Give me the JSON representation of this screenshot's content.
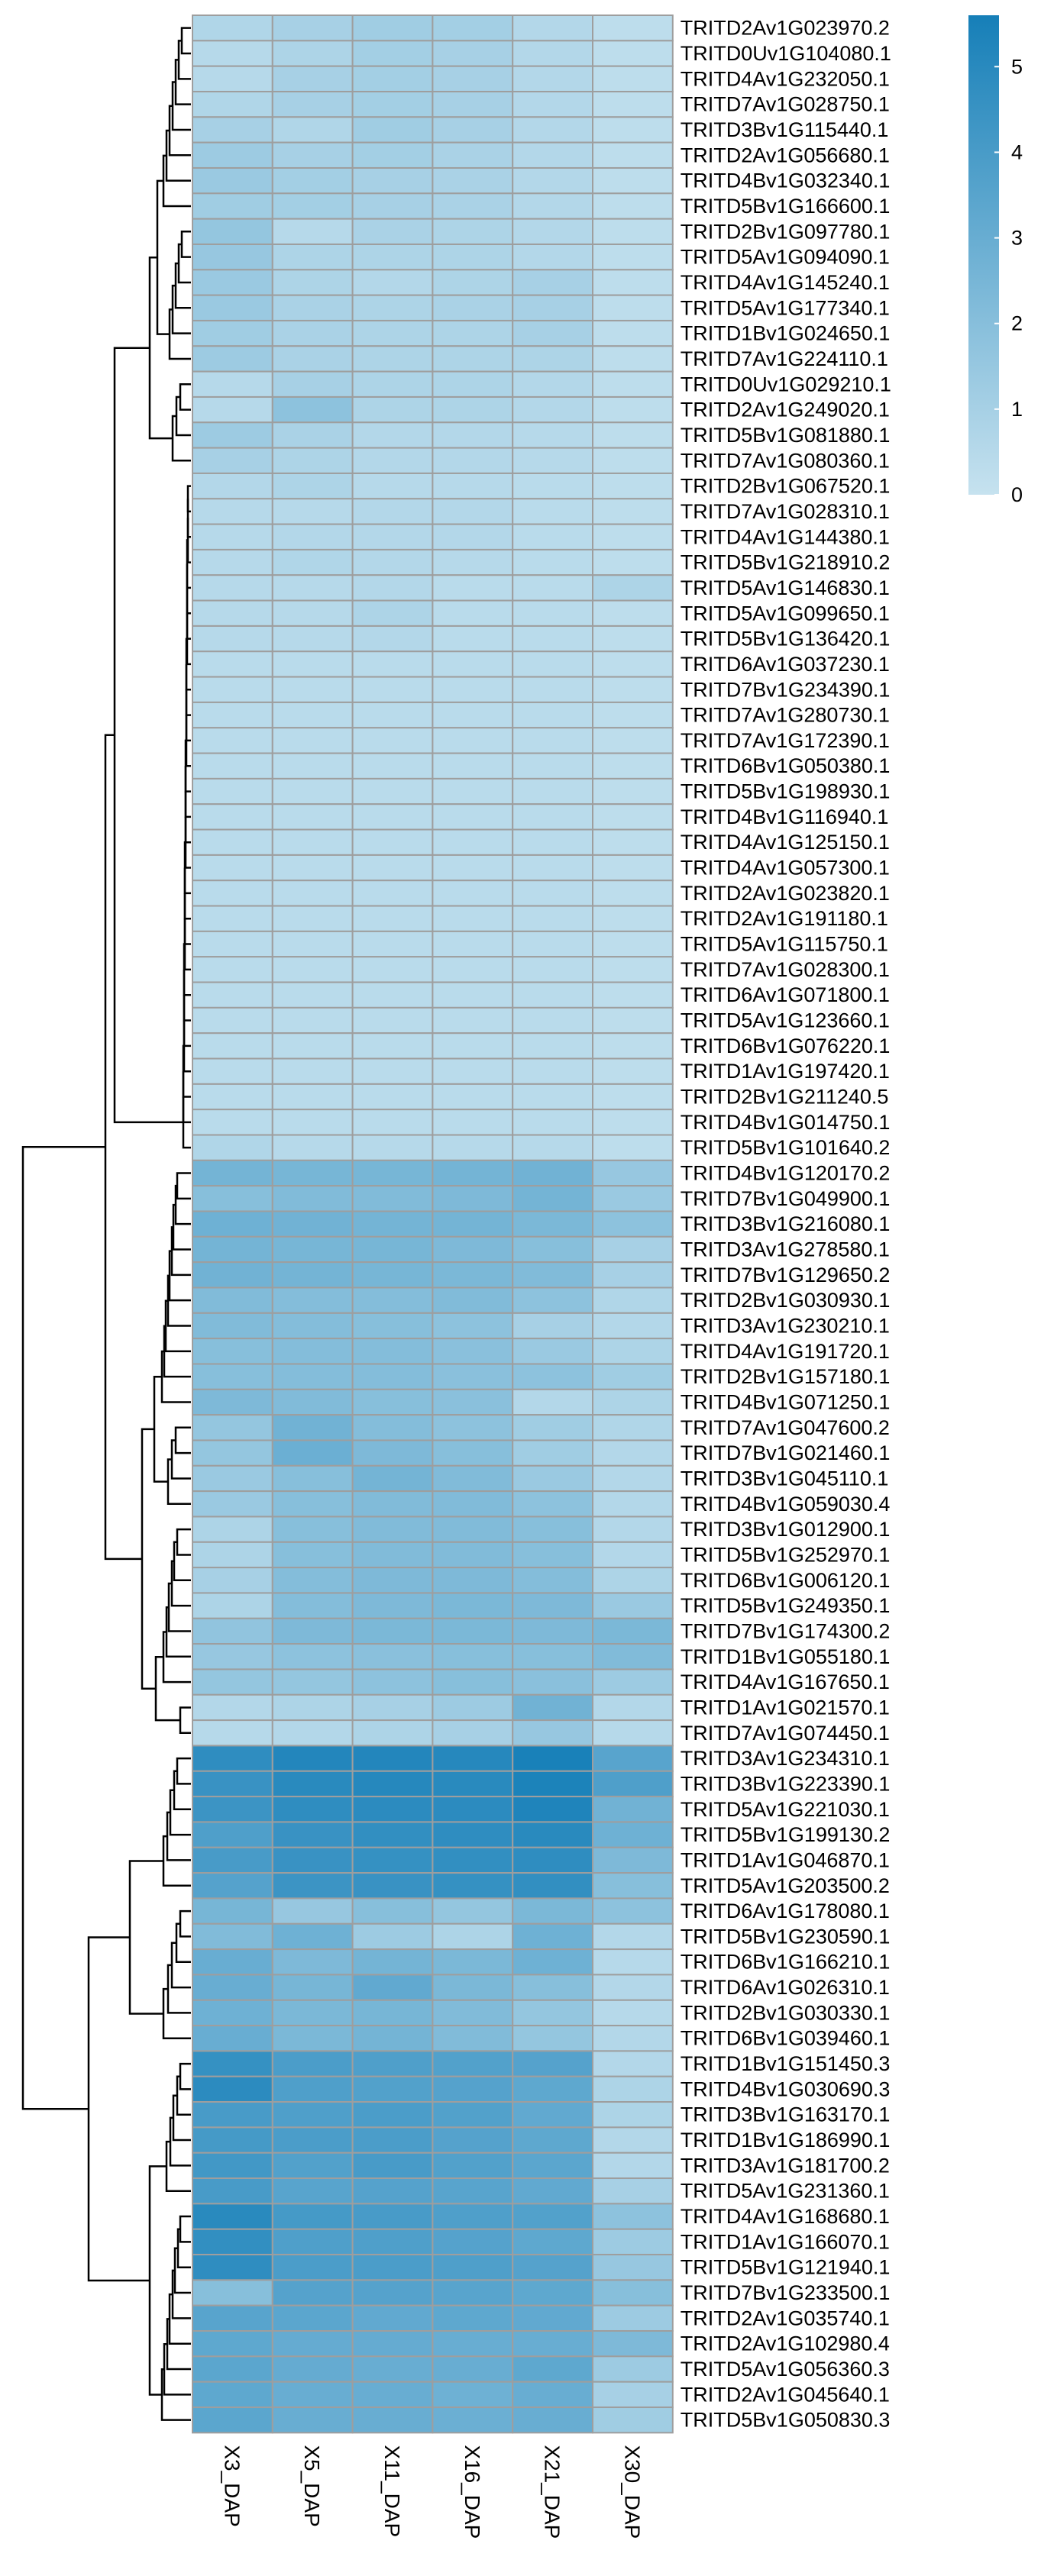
{
  "chart_data": {
    "type": "heatmap",
    "columns": [
      "X3_DAP",
      "X5_DAP",
      "X11_DAP",
      "X16_DAP",
      "X21_DAP",
      "X30_DAP"
    ],
    "rows": [
      "TRITD2Av1G023970.2",
      "TRITD0Uv1G104080.1",
      "TRITD4Av1G232050.1",
      "TRITD7Av1G028750.1",
      "TRITD3Bv1G115440.1",
      "TRITD2Av1G056680.1",
      "TRITD4Bv1G032340.1",
      "TRITD5Bv1G166600.1",
      "TRITD2Bv1G097780.1",
      "TRITD5Av1G094090.1",
      "TRITD4Av1G145240.1",
      "TRITD5Av1G177340.1",
      "TRITD1Bv1G024650.1",
      "TRITD7Av1G224110.1",
      "TRITD0Uv1G029210.1",
      "TRITD2Av1G249020.1",
      "TRITD5Bv1G081880.1",
      "TRITD7Av1G080360.1",
      "TRITD2Bv1G067520.1",
      "TRITD7Av1G028310.1",
      "TRITD4Av1G144380.1",
      "TRITD5Bv1G218910.2",
      "TRITD5Av1G146830.1",
      "TRITD5Av1G099650.1",
      "TRITD5Bv1G136420.1",
      "TRITD6Av1G037230.1",
      "TRITD7Bv1G234390.1",
      "TRITD7Av1G280730.1",
      "TRITD7Av1G172390.1",
      "TRITD6Bv1G050380.1",
      "TRITD5Bv1G198930.1",
      "TRITD4Bv1G116940.1",
      "TRITD4Av1G125150.1",
      "TRITD4Av1G057300.1",
      "TRITD2Av1G023820.1",
      "TRITD2Av1G191180.1",
      "TRITD5Av1G115750.1",
      "TRITD7Av1G028300.1",
      "TRITD6Av1G071800.1",
      "TRITD5Av1G123660.1",
      "TRITD6Bv1G076220.1",
      "TRITD1Av1G197420.1",
      "TRITD2Bv1G211240.5",
      "TRITD4Bv1G014750.1",
      "TRITD5Bv1G101640.2",
      "TRITD4Bv1G120170.2",
      "TRITD7Bv1G049900.1",
      "TRITD3Bv1G216080.1",
      "TRITD3Av1G278580.1",
      "TRITD7Bv1G129650.2",
      "TRITD2Bv1G030930.1",
      "TRITD3Av1G230210.1",
      "TRITD4Av1G191720.1",
      "TRITD2Bv1G157180.1",
      "TRITD4Bv1G071250.1",
      "TRITD7Av1G047600.2",
      "TRITD7Bv1G021460.1",
      "TRITD3Bv1G045110.1",
      "TRITD4Bv1G059030.4",
      "TRITD3Bv1G012900.1",
      "TRITD5Bv1G252970.1",
      "TRITD6Bv1G006120.1",
      "TRITD5Bv1G249350.1",
      "TRITD7Bv1G174300.2",
      "TRITD1Bv1G055180.1",
      "TRITD4Av1G167650.1",
      "TRITD1Av1G021570.1",
      "TRITD7Av1G074450.1",
      "TRITD3Av1G234310.1",
      "TRITD3Bv1G223390.1",
      "TRITD5Av1G221030.1",
      "TRITD5Bv1G199130.2",
      "TRITD1Av1G046870.1",
      "TRITD5Av1G203500.2",
      "TRITD6Av1G178080.1",
      "TRITD5Bv1G230590.1",
      "TRITD6Bv1G166210.1",
      "TRITD6Av1G026310.1",
      "TRITD2Bv1G030330.1",
      "TRITD6Bv1G039460.1",
      "TRITD1Bv1G151450.3",
      "TRITD4Bv1G030690.3",
      "TRITD3Bv1G163170.1",
      "TRITD1Bv1G186990.1",
      "TRITD3Av1G181700.2",
      "TRITD5Av1G231360.1",
      "TRITD4Av1G168680.1",
      "TRITD1Av1G166070.1",
      "TRITD5Bv1G121940.1",
      "TRITD7Bv1G233500.1",
      "TRITD2Av1G035740.1",
      "TRITD2Av1G102980.4",
      "TRITD5Av1G056360.3",
      "TRITD2Av1G045640.1",
      "TRITD5Bv1G050830.3"
    ],
    "values": [
      [
        0.7,
        1.0,
        1.2,
        1.1,
        0.6,
        0.3
      ],
      [
        0.5,
        0.8,
        1.1,
        1.0,
        0.6,
        0.3
      ],
      [
        0.5,
        1.0,
        1.1,
        1.0,
        0.6,
        0.3
      ],
      [
        0.7,
        1.0,
        1.1,
        1.0,
        0.6,
        0.3
      ],
      [
        1.0,
        0.7,
        1.2,
        1.0,
        0.6,
        0.3
      ],
      [
        1.3,
        1.0,
        1.1,
        0.9,
        0.6,
        0.3
      ],
      [
        1.4,
        1.1,
        1.0,
        0.9,
        0.6,
        0.3
      ],
      [
        1.2,
        1.1,
        1.0,
        0.9,
        0.6,
        0.3
      ],
      [
        1.6,
        0.5,
        0.9,
        0.8,
        0.6,
        0.3
      ],
      [
        1.5,
        0.8,
        0.8,
        0.8,
        0.6,
        0.3
      ],
      [
        1.4,
        0.8,
        0.6,
        0.8,
        1.0,
        0.3
      ],
      [
        1.4,
        0.9,
        0.8,
        0.9,
        1.0,
        0.3
      ],
      [
        1.2,
        0.9,
        0.8,
        0.8,
        1.0,
        0.3
      ],
      [
        1.3,
        0.9,
        0.8,
        0.8,
        0.8,
        0.3
      ],
      [
        0.5,
        1.0,
        0.8,
        0.8,
        0.6,
        0.3
      ],
      [
        0.5,
        1.8,
        0.8,
        0.8,
        0.6,
        0.3
      ],
      [
        1.3,
        0.9,
        0.6,
        0.6,
        0.5,
        0.3
      ],
      [
        1.0,
        0.8,
        0.6,
        0.6,
        0.5,
        0.3
      ],
      [
        0.6,
        0.8,
        0.5,
        0.5,
        0.4,
        0.3
      ],
      [
        0.5,
        0.5,
        0.6,
        0.6,
        0.4,
        0.3
      ],
      [
        0.5,
        0.6,
        0.6,
        0.6,
        0.4,
        0.3
      ],
      [
        0.5,
        0.7,
        0.6,
        0.5,
        0.4,
        0.3
      ],
      [
        0.5,
        0.5,
        0.6,
        0.4,
        0.4,
        0.8
      ],
      [
        0.5,
        0.5,
        0.8,
        0.4,
        0.4,
        0.3
      ],
      [
        0.5,
        0.5,
        0.6,
        0.4,
        0.4,
        0.3
      ],
      [
        0.4,
        0.4,
        0.4,
        0.4,
        0.4,
        0.3
      ],
      [
        0.4,
        0.4,
        0.4,
        0.4,
        0.4,
        0.3
      ],
      [
        0.4,
        0.4,
        0.4,
        0.4,
        0.4,
        0.3
      ],
      [
        0.4,
        0.4,
        0.4,
        0.4,
        0.4,
        0.3
      ],
      [
        0.4,
        0.4,
        0.4,
        0.4,
        0.4,
        0.3
      ],
      [
        0.4,
        0.4,
        0.4,
        0.4,
        0.4,
        0.3
      ],
      [
        0.4,
        0.4,
        0.4,
        0.4,
        0.4,
        0.3
      ],
      [
        0.4,
        0.4,
        0.4,
        0.4,
        0.4,
        0.3
      ],
      [
        0.4,
        0.4,
        0.4,
        0.4,
        0.4,
        0.3
      ],
      [
        0.4,
        0.4,
        0.4,
        0.4,
        0.4,
        0.3
      ],
      [
        0.4,
        0.4,
        0.4,
        0.4,
        0.4,
        0.3
      ],
      [
        0.4,
        0.4,
        0.4,
        0.4,
        0.4,
        0.3
      ],
      [
        0.4,
        0.4,
        0.4,
        0.4,
        0.4,
        0.3
      ],
      [
        0.4,
        0.4,
        0.4,
        0.4,
        0.4,
        0.3
      ],
      [
        0.4,
        0.4,
        0.4,
        0.4,
        0.4,
        0.3
      ],
      [
        0.4,
        0.4,
        0.4,
        0.4,
        0.4,
        0.3
      ],
      [
        0.4,
        0.4,
        0.4,
        0.4,
        0.4,
        0.3
      ],
      [
        0.4,
        0.4,
        0.4,
        0.4,
        0.4,
        0.3
      ],
      [
        0.4,
        0.4,
        0.4,
        0.4,
        0.4,
        0.3
      ],
      [
        0.7,
        0.5,
        0.5,
        0.5,
        0.5,
        0.3
      ],
      [
        2.6,
        2.5,
        2.5,
        2.6,
        2.7,
        1.5
      ],
      [
        2.0,
        2.2,
        2.2,
        2.3,
        2.6,
        1.4
      ],
      [
        2.8,
        2.7,
        2.6,
        2.6,
        2.4,
        1.8
      ],
      [
        2.6,
        2.5,
        2.5,
        2.3,
        2.0,
        1.0
      ],
      [
        2.7,
        2.6,
        2.5,
        2.4,
        2.2,
        1.0
      ],
      [
        2.2,
        2.1,
        2.1,
        2.2,
        1.8,
        0.7
      ],
      [
        2.2,
        2.1,
        2.0,
        1.8,
        1.0,
        0.6
      ],
      [
        2.0,
        2.1,
        2.1,
        1.9,
        1.4,
        0.8
      ],
      [
        2.0,
        2.1,
        2.1,
        1.9,
        1.8,
        1.2
      ],
      [
        2.3,
        2.2,
        2.0,
        1.9,
        0.6,
        0.8
      ],
      [
        1.6,
        2.7,
        2.1,
        1.8,
        1.2,
        0.7
      ],
      [
        1.6,
        2.9,
        2.3,
        2.0,
        1.2,
        0.6
      ],
      [
        1.4,
        2.0,
        2.6,
        2.2,
        1.4,
        0.6
      ],
      [
        1.4,
        2.0,
        2.2,
        2.2,
        1.8,
        0.6
      ],
      [
        0.8,
        2.0,
        2.2,
        2.2,
        2.0,
        0.6
      ],
      [
        0.8,
        2.0,
        2.2,
        2.2,
        2.0,
        0.6
      ],
      [
        1.0,
        2.1,
        2.3,
        2.3,
        2.1,
        0.8
      ],
      [
        0.8,
        2.1,
        2.3,
        2.4,
        2.3,
        1.4
      ],
      [
        1.7,
        2.3,
        2.4,
        2.4,
        2.3,
        2.4
      ],
      [
        1.5,
        1.8,
        1.9,
        2.0,
        2.0,
        2.2
      ],
      [
        1.6,
        1.6,
        1.8,
        2.0,
        1.9,
        1.3
      ],
      [
        0.6,
        0.8,
        1.0,
        1.3,
        2.7,
        0.6
      ],
      [
        0.5,
        0.6,
        0.8,
        1.0,
        1.5,
        0.5
      ],
      [
        4.8,
        5.2,
        5.2,
        5.1,
        5.5,
        3.5
      ],
      [
        4.5,
        5.0,
        5.1,
        5.0,
        5.4,
        3.8
      ],
      [
        4.4,
        4.8,
        4.9,
        4.9,
        5.3,
        2.7
      ],
      [
        3.8,
        4.5,
        4.7,
        4.8,
        5.0,
        2.8
      ],
      [
        4.0,
        4.5,
        4.6,
        4.7,
        4.8,
        2.3
      ],
      [
        3.6,
        4.4,
        4.5,
        4.6,
        4.7,
        2.0
      ],
      [
        2.5,
        1.5,
        2.0,
        1.6,
        2.4,
        1.8
      ],
      [
        2.2,
        2.8,
        1.3,
        0.8,
        2.8,
        0.6
      ],
      [
        3.0,
        2.3,
        2.6,
        2.4,
        2.8,
        0.5
      ],
      [
        3.0,
        2.5,
        3.2,
        2.4,
        2.0,
        0.6
      ],
      [
        2.8,
        2.4,
        2.5,
        2.2,
        1.6,
        0.5
      ],
      [
        3.0,
        2.4,
        2.6,
        2.2,
        1.6,
        0.6
      ],
      [
        4.6,
        3.9,
        3.8,
        3.7,
        3.6,
        0.6
      ],
      [
        4.9,
        3.8,
        3.7,
        3.6,
        3.3,
        0.8
      ],
      [
        4.0,
        3.8,
        3.9,
        3.7,
        3.2,
        0.8
      ],
      [
        4.1,
        3.9,
        3.9,
        3.6,
        3.3,
        0.6
      ],
      [
        4.2,
        3.7,
        4.0,
        3.7,
        3.4,
        0.6
      ],
      [
        4.0,
        3.5,
        3.6,
        3.5,
        3.2,
        1.0
      ],
      [
        5.0,
        4.1,
        4.0,
        3.8,
        3.7,
        1.8
      ],
      [
        4.7,
        3.8,
        3.8,
        3.6,
        3.3,
        1.3
      ],
      [
        4.8,
        3.9,
        3.9,
        3.8,
        3.6,
        1.5
      ],
      [
        2.0,
        3.6,
        3.6,
        3.5,
        3.3,
        2.0
      ],
      [
        3.5,
        3.4,
        3.2,
        3.3,
        3.2,
        1.3
      ],
      [
        3.3,
        3.1,
        3.1,
        3.0,
        3.0,
        2.3
      ],
      [
        3.4,
        3.1,
        3.0,
        3.0,
        3.3,
        1.3
      ],
      [
        3.3,
        3.0,
        3.0,
        2.8,
        3.0,
        1.0
      ],
      [
        3.4,
        3.0,
        3.0,
        2.9,
        3.0,
        1.2
      ]
    ],
    "color_scale": {
      "min": 0,
      "max": 5.6,
      "low_color": "#c6e2ef",
      "high_color": "#167fb8",
      "legend_ticks": [
        0,
        1,
        2,
        3,
        4,
        5
      ]
    },
    "legend_placement": "top-right",
    "cell_border_color": "#9e9e9e",
    "row_dendrogram": true,
    "column_dendrogram": false,
    "title": "",
    "xlabel": "",
    "ylabel": ""
  }
}
